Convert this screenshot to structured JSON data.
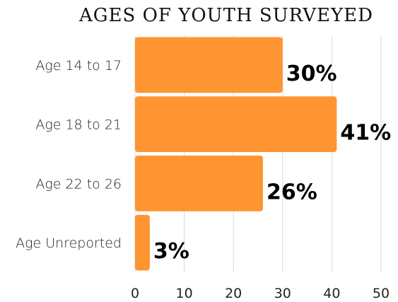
{
  "chart_data": {
    "type": "bar",
    "orientation": "horizontal",
    "title": "AGES OF YOUTH SURVEYED",
    "categories": [
      "Age 14 to 17",
      "Age 18 to 21",
      "Age 22 to 26",
      "Age Unreported"
    ],
    "values": [
      30,
      41,
      26,
      3
    ],
    "value_labels": [
      "30%",
      "41%",
      "26%",
      "3%"
    ],
    "xlim": [
      0,
      50
    ],
    "xticks": [
      0,
      10,
      20,
      30,
      40,
      50
    ],
    "xtick_labels": [
      "0",
      "10",
      "20",
      "30",
      "40",
      "50"
    ],
    "xlabel": "",
    "ylabel": "",
    "grid": "vertical",
    "bar_color": "#ff9433",
    "grid_color": "#d9d9d9"
  }
}
